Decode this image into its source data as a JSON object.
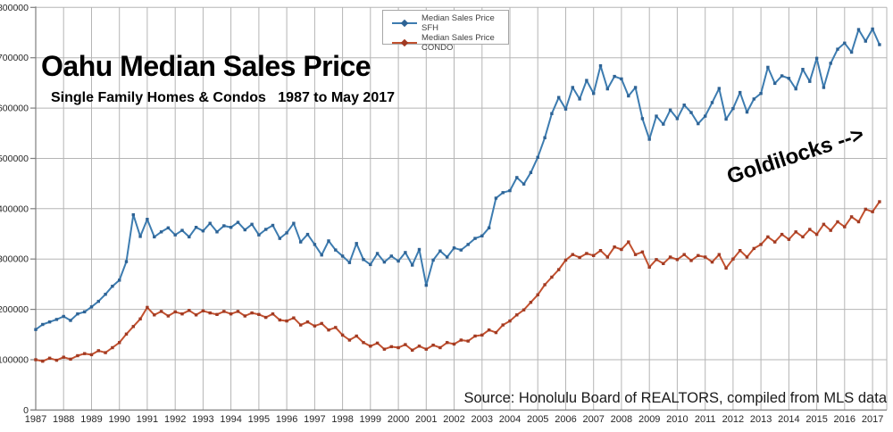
{
  "title": "Oahu Median Sales Price",
  "subtitle": "Single Family Homes & Condos   1987 to May 2017",
  "annotation": "Goldilocks -->",
  "source": "Source: Honolulu Board of REALTORS, compiled from MLS data",
  "legend": {
    "items": [
      {
        "label": "Median Sales Price SFH"
      },
      {
        "label": "Median Sales Price CONDO"
      }
    ]
  },
  "colors": {
    "gridline": "#b5b5b5",
    "axis": "#7f7f7f",
    "tick_text": "#262626",
    "legend_border": "#a6a6a6",
    "background": "#ffffff"
  },
  "chart_data": {
    "type": "line",
    "title": "Oahu Median Sales Price",
    "subtitle": "Single Family Homes & Condos   1987 to May 2017",
    "xlabel": "",
    "ylabel": "",
    "grid": true,
    "legend_position": "top-center",
    "x_unit": "decimal_year_quarterly_estimates",
    "x_start": 1987,
    "x_step": 0.25,
    "x_range": [
      1987,
      2017.51
    ],
    "y_range": [
      0,
      800000
    ],
    "x_ticks": [
      1987,
      1988,
      1989,
      1990,
      1991,
      1992,
      1993,
      1994,
      1995,
      1996,
      1997,
      1998,
      1999,
      2000,
      2001,
      2002,
      2003,
      2004,
      2005,
      2006,
      2007,
      2008,
      2009,
      2010,
      2011,
      2012,
      2013,
      2014,
      2015,
      2016,
      2017
    ],
    "y_ticks": [
      0,
      100000,
      200000,
      300000,
      400000,
      500000,
      600000,
      700000,
      800000
    ],
    "series": [
      {
        "id": "sfh",
        "name": "Median Sales Price SFH",
        "color": "#3d7cb0",
        "marker_color": "#2e6395",
        "values": [
          160000,
          170000,
          175000,
          180000,
          186000,
          178000,
          191000,
          195000,
          205000,
          216000,
          230000,
          246000,
          258000,
          295000,
          388000,
          345000,
          379000,
          344000,
          354000,
          362000,
          348000,
          357000,
          344000,
          363000,
          356000,
          371000,
          354000,
          366000,
          363000,
          373000,
          358000,
          369000,
          348000,
          359000,
          367000,
          341000,
          352000,
          371000,
          334000,
          349000,
          329000,
          308000,
          336000,
          318000,
          306000,
          293000,
          331000,
          299000,
          289000,
          311000,
          294000,
          306000,
          296000,
          313000,
          288000,
          319000,
          248000,
          298000,
          316000,
          304000,
          322000,
          318000,
          329000,
          341000,
          346000,
          362000,
          421000,
          432000,
          436000,
          462000,
          449000,
          472000,
          502000,
          541000,
          589000,
          621000,
          598000,
          641000,
          618000,
          655000,
          629000,
          684000,
          638000,
          663000,
          658000,
          624000,
          641000,
          579000,
          538000,
          584000,
          568000,
          596000,
          579000,
          606000,
          591000,
          569000,
          584000,
          611000,
          639000,
          578000,
          599000,
          631000,
          592000,
          618000,
          629000,
          681000,
          649000,
          664000,
          659000,
          638000,
          677000,
          653000,
          699000,
          641000,
          689000,
          717000,
          729000,
          711000,
          756000,
          733000,
          757000,
          726000
        ]
      },
      {
        "id": "condo",
        "name": "Median Sales Price CONDO",
        "color": "#c2512f",
        "marker_color": "#a13a22",
        "values": [
          100000,
          97000,
          103000,
          99000,
          105000,
          101000,
          108000,
          112000,
          110000,
          118000,
          114000,
          124000,
          134000,
          151000,
          166000,
          181000,
          204000,
          189000,
          196000,
          187000,
          195000,
          191000,
          198000,
          189000,
          197000,
          193000,
          190000,
          196000,
          191000,
          196000,
          187000,
          193000,
          190000,
          184000,
          191000,
          179000,
          177000,
          183000,
          169000,
          175000,
          167000,
          172000,
          159000,
          164000,
          149000,
          139000,
          147000,
          134000,
          127000,
          133000,
          121000,
          126000,
          124000,
          130000,
          119000,
          127000,
          121000,
          129000,
          124000,
          134000,
          131000,
          139000,
          137000,
          147000,
          149000,
          159000,
          154000,
          169000,
          177000,
          189000,
          199000,
          214000,
          229000,
          249000,
          264000,
          279000,
          298000,
          309000,
          303000,
          311000,
          307000,
          317000,
          304000,
          324000,
          319000,
          334000,
          309000,
          314000,
          284000,
          299000,
          291000,
          304000,
          299000,
          309000,
          297000,
          307000,
          304000,
          294000,
          309000,
          282000,
          300000,
          317000,
          304000,
          321000,
          329000,
          344000,
          334000,
          349000,
          339000,
          354000,
          344000,
          359000,
          349000,
          369000,
          357000,
          374000,
          364000,
          384000,
          374000,
          399000,
          394000,
          414000
        ]
      }
    ]
  }
}
